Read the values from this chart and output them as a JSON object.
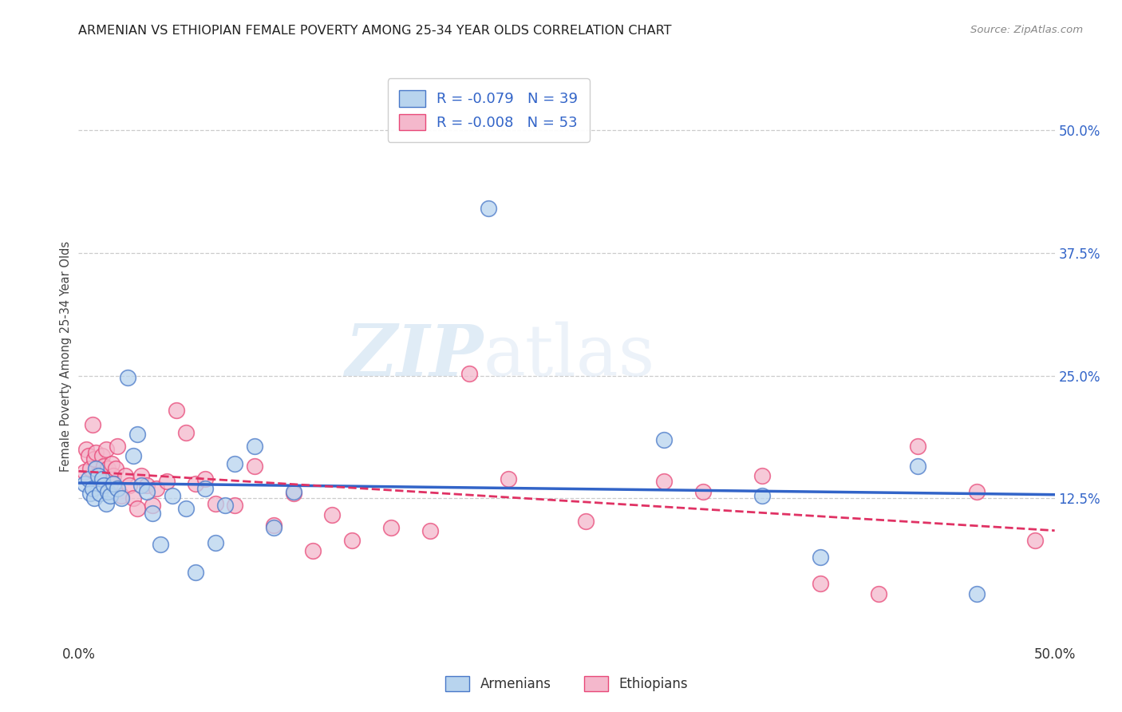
{
  "title": "ARMENIAN VS ETHIOPIAN FEMALE POVERTY AMONG 25-34 YEAR OLDS CORRELATION CHART",
  "source": "Source: ZipAtlas.com",
  "ylabel": "Female Poverty Among 25-34 Year Olds",
  "xlim": [
    0.0,
    0.5
  ],
  "ylim": [
    -0.02,
    0.56
  ],
  "ytick_right_labels": [
    "50.0%",
    "37.5%",
    "25.0%",
    "12.5%"
  ],
  "ytick_right_values": [
    0.5,
    0.375,
    0.25,
    0.125
  ],
  "armenian_color": "#b8d4ee",
  "ethiopian_color": "#f4b8cc",
  "armenian_edge_color": "#4878c8",
  "ethiopian_edge_color": "#e84878",
  "armenian_line_color": "#3264c8",
  "ethiopian_line_color": "#e03264",
  "legend_armenian_label": "R = -0.079   N = 39",
  "legend_ethiopian_label": "R = -0.008   N = 53",
  "legend_label_armenians": "Armenians",
  "legend_label_ethiopians": "Ethiopians",
  "armenian_x": [
    0.003,
    0.005,
    0.006,
    0.007,
    0.008,
    0.009,
    0.01,
    0.011,
    0.012,
    0.013,
    0.014,
    0.015,
    0.016,
    0.018,
    0.02,
    0.022,
    0.025,
    0.028,
    0.03,
    0.032,
    0.035,
    0.038,
    0.042,
    0.048,
    0.055,
    0.06,
    0.065,
    0.07,
    0.075,
    0.08,
    0.09,
    0.1,
    0.11,
    0.21,
    0.3,
    0.35,
    0.38,
    0.43,
    0.46
  ],
  "armenian_y": [
    0.14,
    0.145,
    0.13,
    0.135,
    0.125,
    0.155,
    0.148,
    0.13,
    0.145,
    0.138,
    0.12,
    0.132,
    0.128,
    0.14,
    0.135,
    0.125,
    0.248,
    0.168,
    0.19,
    0.138,
    0.132,
    0.11,
    0.078,
    0.128,
    0.115,
    0.05,
    0.135,
    0.08,
    0.118,
    0.16,
    0.178,
    0.095,
    0.132,
    0.42,
    0.185,
    0.128,
    0.065,
    0.158,
    0.028
  ],
  "ethiopian_x": [
    0.003,
    0.004,
    0.005,
    0.006,
    0.007,
    0.008,
    0.009,
    0.01,
    0.011,
    0.012,
    0.013,
    0.014,
    0.015,
    0.016,
    0.017,
    0.018,
    0.019,
    0.02,
    0.022,
    0.024,
    0.026,
    0.028,
    0.03,
    0.032,
    0.035,
    0.038,
    0.04,
    0.045,
    0.05,
    0.055,
    0.06,
    0.065,
    0.07,
    0.08,
    0.09,
    0.1,
    0.11,
    0.12,
    0.13,
    0.14,
    0.16,
    0.18,
    0.2,
    0.22,
    0.26,
    0.3,
    0.32,
    0.35,
    0.38,
    0.41,
    0.43,
    0.46,
    0.49
  ],
  "ethiopian_y": [
    0.152,
    0.175,
    0.168,
    0.155,
    0.2,
    0.165,
    0.172,
    0.15,
    0.145,
    0.168,
    0.158,
    0.175,
    0.155,
    0.14,
    0.16,
    0.148,
    0.155,
    0.178,
    0.128,
    0.148,
    0.138,
    0.125,
    0.115,
    0.148,
    0.138,
    0.118,
    0.135,
    0.142,
    0.215,
    0.192,
    0.14,
    0.145,
    0.12,
    0.118,
    0.158,
    0.098,
    0.13,
    0.072,
    0.108,
    0.082,
    0.095,
    0.092,
    0.252,
    0.145,
    0.102,
    0.142,
    0.132,
    0.148,
    0.038,
    0.028,
    0.178,
    0.132,
    0.082
  ],
  "watermark_zip": "ZIP",
  "watermark_atlas": "atlas",
  "background_color": "#ffffff",
  "grid_color": "#cccccc"
}
